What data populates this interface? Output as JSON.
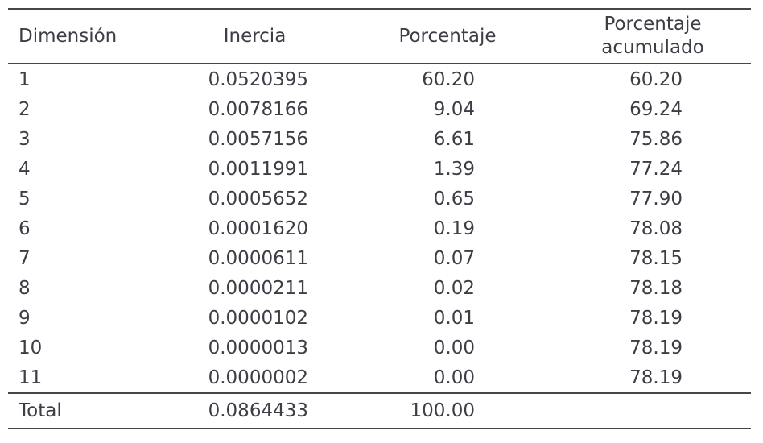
{
  "colors": {
    "text": "#3d3d46",
    "rule": "#474747",
    "background": "#ffffff"
  },
  "table": {
    "headers": [
      "Dimensión",
      "Inercia",
      "Porcentaje",
      "Porcentaje acumulado"
    ],
    "rows": [
      [
        "1",
        "0.0520395",
        "60.20",
        "60.20"
      ],
      [
        "2",
        "0.0078166",
        "9.04",
        "69.24"
      ],
      [
        "3",
        "0.0057156",
        "6.61",
        "75.86"
      ],
      [
        "4",
        "0.0011991",
        "1.39",
        "77.24"
      ],
      [
        "5",
        "0.0005652",
        "0.65",
        "77.90"
      ],
      [
        "6",
        "0.0001620",
        "0.19",
        "78.08"
      ],
      [
        "7",
        "0.0000611",
        "0.07",
        "78.15"
      ],
      [
        "8",
        "0.0000211",
        "0.02",
        "78.18"
      ],
      [
        "9",
        "0.0000102",
        "0.01",
        "78.19"
      ],
      [
        "10",
        "0.0000013",
        "0.00",
        "78.19"
      ],
      [
        "11",
        "0.0000002",
        "0.00",
        "78.19"
      ]
    ],
    "total_row": [
      "Total",
      "0.0864433",
      "100.00",
      ""
    ]
  },
  "chart_data": {
    "type": "table",
    "title": "",
    "columns": [
      "Dimensión",
      "Inercia",
      "Porcentaje",
      "Porcentaje acumulado"
    ],
    "rows": [
      [
        1,
        0.0520395,
        60.2,
        60.2
      ],
      [
        2,
        0.0078166,
        9.04,
        69.24
      ],
      [
        3,
        0.0057156,
        6.61,
        75.86
      ],
      [
        4,
        0.0011991,
        1.39,
        77.24
      ],
      [
        5,
        0.0005652,
        0.65,
        77.9
      ],
      [
        6,
        0.000162,
        0.19,
        78.08
      ],
      [
        7,
        6.11e-05,
        0.07,
        78.15
      ],
      [
        8,
        2.11e-05,
        0.02,
        78.18
      ],
      [
        9,
        1.02e-05,
        0.01,
        78.19
      ],
      [
        10,
        1.3e-06,
        0.0,
        78.19
      ],
      [
        11,
        2e-07,
        0.0,
        78.19
      ]
    ],
    "total": [
      "Total",
      0.0864433,
      100.0,
      null
    ]
  }
}
